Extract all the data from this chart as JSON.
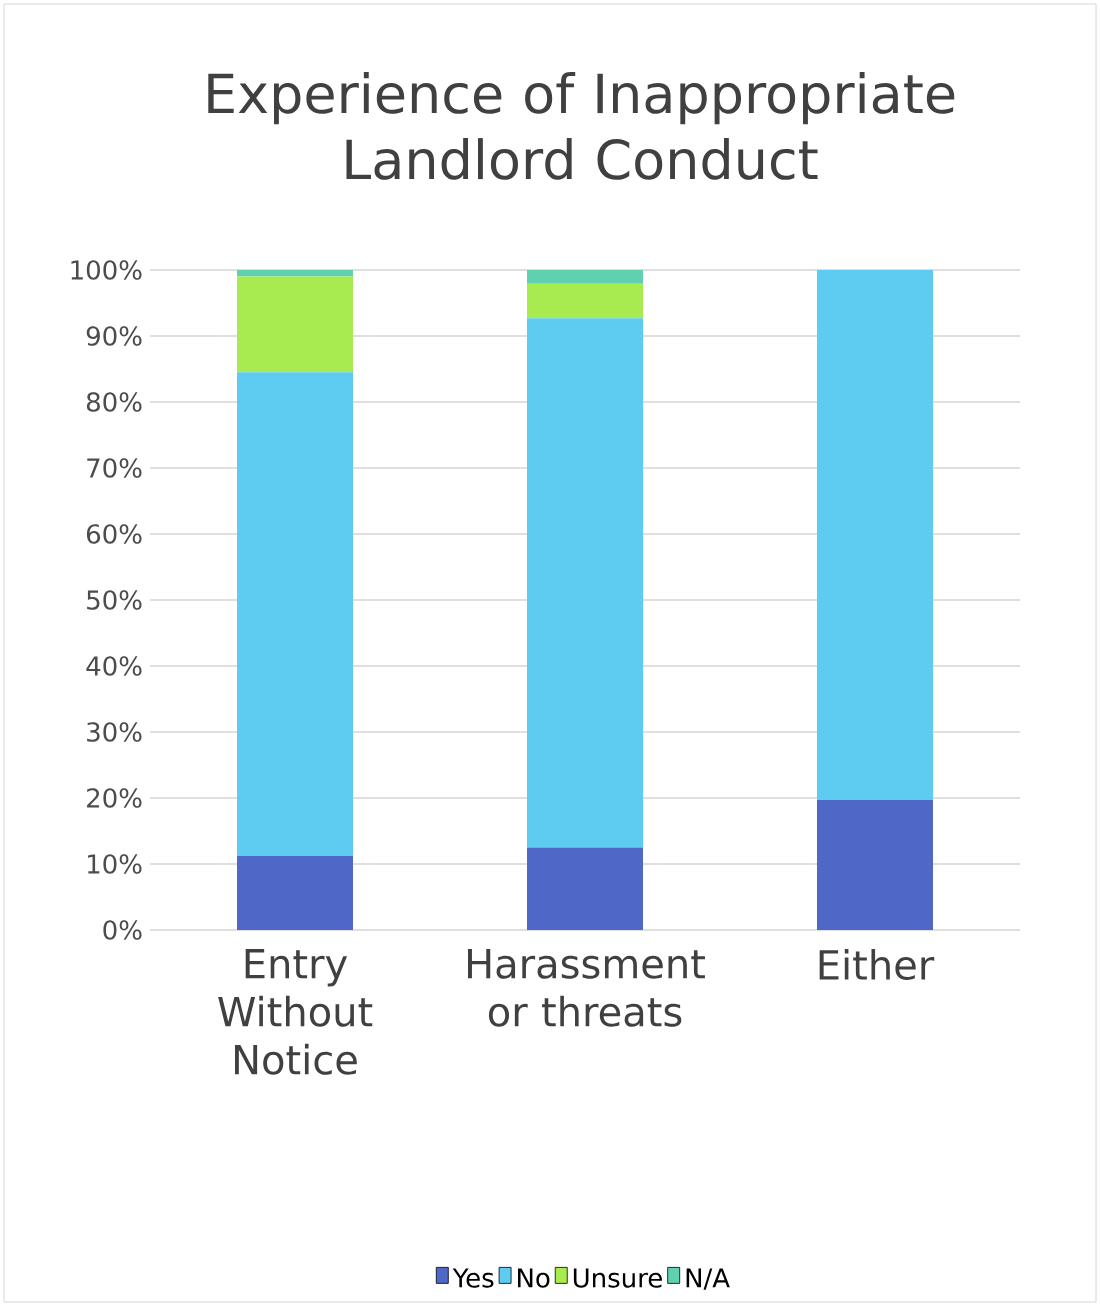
{
  "chart_data": {
    "type": "bar",
    "stacked": true,
    "title": "Experience of Inappropriate Landlord Conduct",
    "categories": [
      "Entry Without Notice",
      "Harassment or threats",
      "Either"
    ],
    "series": [
      {
        "name": "Yes",
        "color": "#4f67c6",
        "values": [
          11.2,
          12.5,
          19.7
        ]
      },
      {
        "name": "No",
        "color": "#5ecbf0",
        "values": [
          73.3,
          80.2,
          80.3
        ]
      },
      {
        "name": "Unsure",
        "color": "#a8eb50",
        "values": [
          14.5,
          5.2,
          0
        ]
      },
      {
        "name": "N/A",
        "color": "#5fd1b0",
        "values": [
          1.0,
          2.1,
          0
        ]
      }
    ],
    "ylim": [
      0,
      100
    ],
    "yticks": [
      {
        "value": 0,
        "label": "0%"
      },
      {
        "value": 10,
        "label": "10%"
      },
      {
        "value": 20,
        "label": "20%"
      },
      {
        "value": 30,
        "label": "30%"
      },
      {
        "value": 40,
        "label": "40%"
      },
      {
        "value": 50,
        "label": "50%"
      },
      {
        "value": 60,
        "label": "60%"
      },
      {
        "value": 70,
        "label": "70%"
      },
      {
        "value": 80,
        "label": "80%"
      },
      {
        "value": 90,
        "label": "90%"
      },
      {
        "value": 100,
        "label": "100%"
      }
    ],
    "grid": "y",
    "legend": "bottom"
  }
}
